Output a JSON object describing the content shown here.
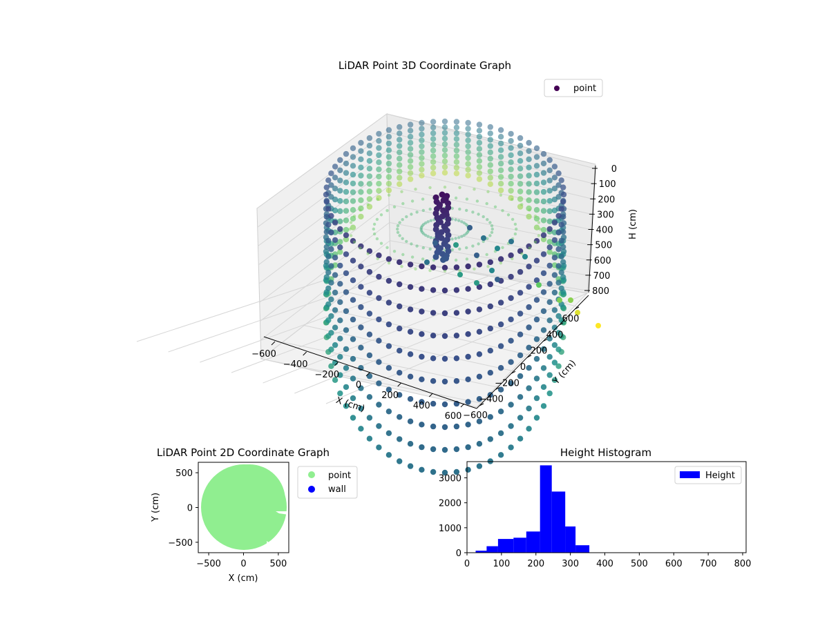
{
  "chart_data": [
    {
      "type": "scatter",
      "title": "LiDAR Point 3D Coordinate Graph",
      "xlabel": "X (cm)",
      "ylabel": "Y (cm)",
      "zlabel": "H (cm)",
      "xlim": [
        -600,
        600
      ],
      "ylim": [
        -600,
        600
      ],
      "zlim": [
        0,
        800
      ],
      "z_inverted": true,
      "x_ticks": [
        "−600",
        "−400",
        "−200",
        "0",
        "200",
        "400",
        "600"
      ],
      "y_ticks": [
        "−600",
        "−400",
        "−200",
        "0",
        "200",
        "400",
        "600"
      ],
      "z_ticks": [
        "0",
        "100",
        "200",
        "300",
        "400",
        "500",
        "600",
        "700",
        "800"
      ],
      "colormap": "viridis",
      "legend": {
        "placement": "upper-right",
        "entries": [
          {
            "label": "point",
            "color": "#440154"
          }
        ]
      },
      "ring_radius": 600,
      "ring_posts": 64,
      "post_top_height": 200,
      "post_bottom_height": 740
    },
    {
      "type": "scatter",
      "title": "LiDAR Point 2D Coordinate Graph",
      "xlabel": "X (cm)",
      "ylabel": "Y (cm)",
      "xlim": [
        -650,
        650
      ],
      "ylim": [
        -650,
        650
      ],
      "x_ticks": [
        "−500",
        "0",
        "500"
      ],
      "y_ticks": [
        "500",
        "0",
        "−500"
      ],
      "legend": {
        "placement": "outside-right",
        "entries": [
          {
            "label": "point",
            "color": "#90ee90"
          },
          {
            "label": "wall",
            "color": "#0000ff"
          }
        ]
      }
    },
    {
      "type": "bar",
      "title": "Height Histogram",
      "xlim": [
        0,
        810
      ],
      "ylim": [
        0,
        3650
      ],
      "x_ticks": [
        "0",
        "100",
        "200",
        "300",
        "400",
        "500",
        "600",
        "700",
        "800"
      ],
      "y_ticks": [
        "0",
        "1000",
        "2000",
        "3000"
      ],
      "bin_edges": [
        25,
        57,
        90,
        135,
        172,
        212,
        246,
        285,
        315,
        355,
        395
      ],
      "values": [
        80,
        260,
        550,
        600,
        850,
        3500,
        2450,
        1050,
        300,
        0
      ],
      "color": "#0000ff",
      "legend": {
        "placement": "upper-right",
        "entries": [
          {
            "label": "Height",
            "color": "#0000ff"
          }
        ]
      }
    }
  ]
}
